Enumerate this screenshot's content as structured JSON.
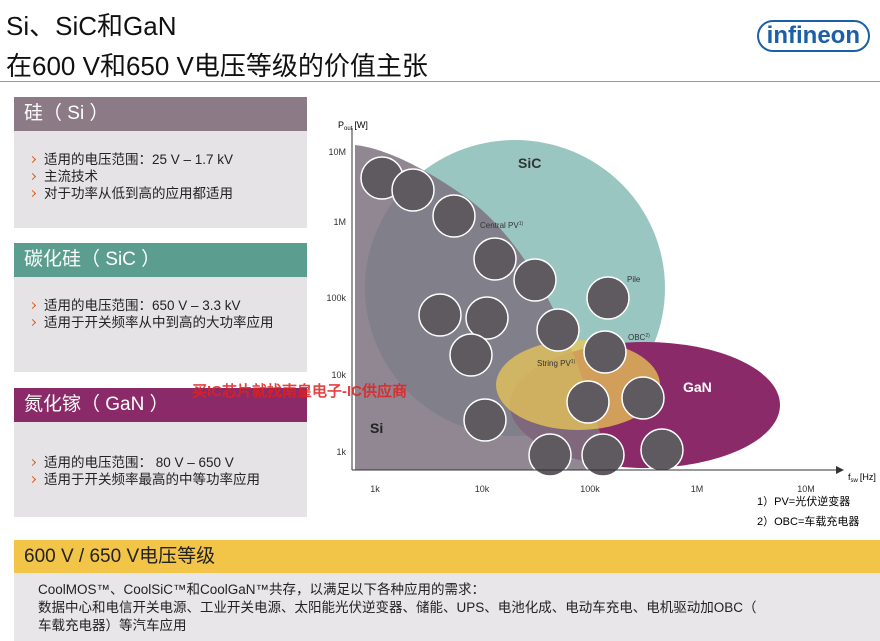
{
  "header": {
    "title_line1": "Si、SiC和GaN",
    "title_line2": "在600 V和650 V电压等级的价值主张",
    "logo": "infineon"
  },
  "sections": [
    {
      "title": "硅（ Si ）",
      "bullets": [
        "适用的电压范围：25 V – 1.7 kV",
        "主流技术",
        "对于功率从低到高的应用都适用"
      ]
    },
    {
      "title": "碳化硅（ SiC ）",
      "bullets": [
        "适用的电压范围：650 V – 3.3 kV",
        "适用于开关频率从中到高的大功率应用"
      ]
    },
    {
      "title": "氮化镓（ GaN ）",
      "bullets": [
        "适用的电压范围： 80 V – 650 V",
        "适用于开关频率最高的中等功率应用"
      ]
    }
  ],
  "diagram": {
    "y_axis_label": {
      "symbol": "P",
      "sub": "out",
      "unit": "[W]"
    },
    "x_axis_label": {
      "symbol": "f",
      "sub": "sw",
      "unit": "[Hz]"
    },
    "y_ticks": [
      "10M",
      "1M",
      "100k",
      "10k",
      "1k"
    ],
    "x_ticks": [
      "1k",
      "10k",
      "100k",
      "1M",
      "10M"
    ],
    "regions": {
      "sic": "SiC",
      "si": "Si",
      "gan": "GaN"
    },
    "applications": [
      {
        "label": "Central PV",
        "note": "1)"
      },
      {
        "label": "Pile",
        "note": ""
      },
      {
        "label": "OBC",
        "note": "2)"
      },
      {
        "label": "String PV",
        "note": "1)"
      }
    ],
    "footnotes": [
      "1）PV=光伏逆变器",
      "2）OBC=车载充电器"
    ]
  },
  "watermark": "买IC芯片就找南皇电子-IC供应商",
  "banner": {
    "title": "600 V / 650 V电压等级",
    "lines": [
      "CoolMOS™、CoolSiC™和CoolGaN™共存，以满足以下各种应用的需求：",
      "数据中心和电信开关电源、工业开关电源、太阳能光伏逆变器、储能、UPS、电池化成、电动车充电、电机驱动加OBC（",
      "车载充电器）等汽车应用"
    ]
  }
}
